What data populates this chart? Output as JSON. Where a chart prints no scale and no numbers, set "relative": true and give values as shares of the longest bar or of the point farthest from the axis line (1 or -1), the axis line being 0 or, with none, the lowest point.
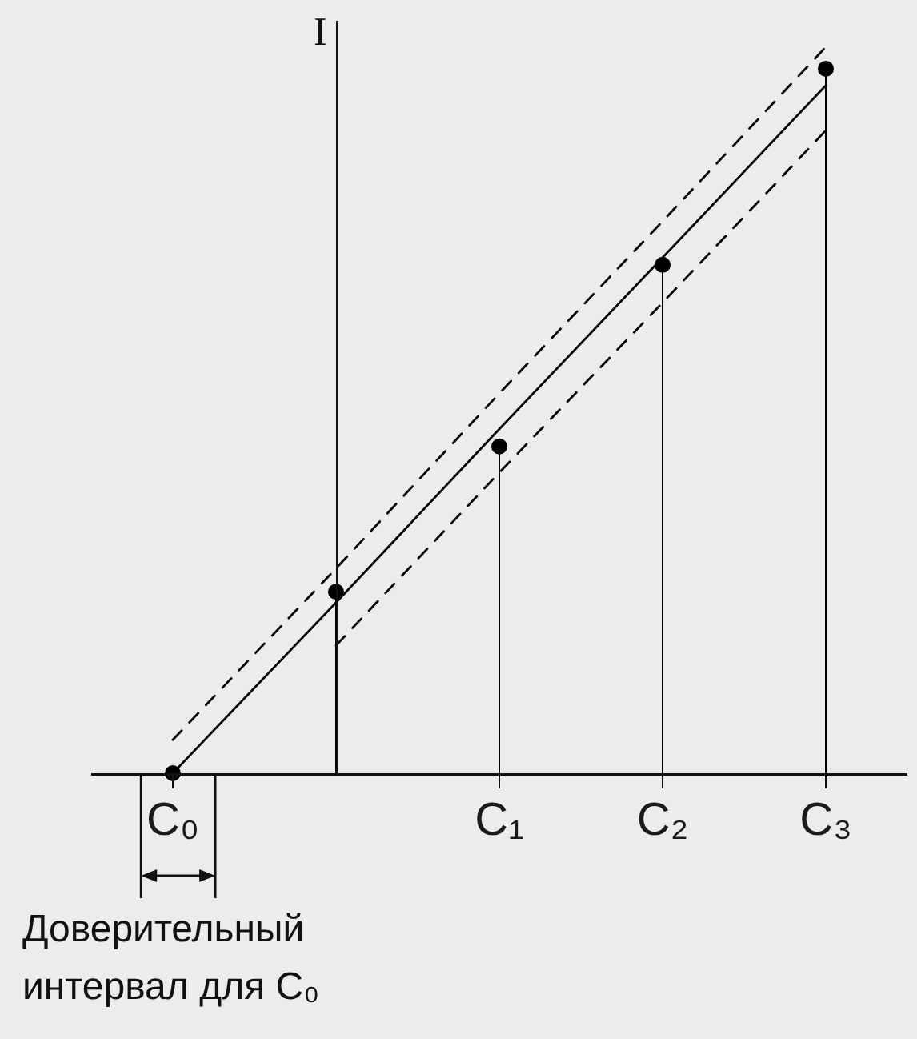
{
  "chart_data": {
    "type": "lollipop",
    "ylabel": "I",
    "categories": [
      "C₀",
      null,
      "C₁",
      "C₂",
      "C₃"
    ],
    "relative": true,
    "annotations": [
      "Доверительный интервал для C₀"
    ],
    "series": [
      {
        "color": "#000000",
        "marker": "circle",
        "values": [
          0,
          0.25,
          0.45,
          0.7,
          0.97
        ]
      },
      {
        "type": "line",
        "color": "#000000",
        "marker": "none",
        "line_style": "solid",
        "values": [
          0,
          0.235,
          0.474,
          0.71,
          0.947
        ]
      },
      {
        "type": "line",
        "color": "#000000",
        "marker": "none",
        "line_style": "dashed",
        "values": [
          0.046,
          0.282,
          0.523,
          0.76,
          1
        ]
      },
      {
        "type": "line",
        "color": "#000000",
        "marker": "none",
        "line_style": "dashed",
        "values": [
          null,
          0.176,
          0.414,
          0.648,
          0.885
        ]
      }
    ]
  }
}
